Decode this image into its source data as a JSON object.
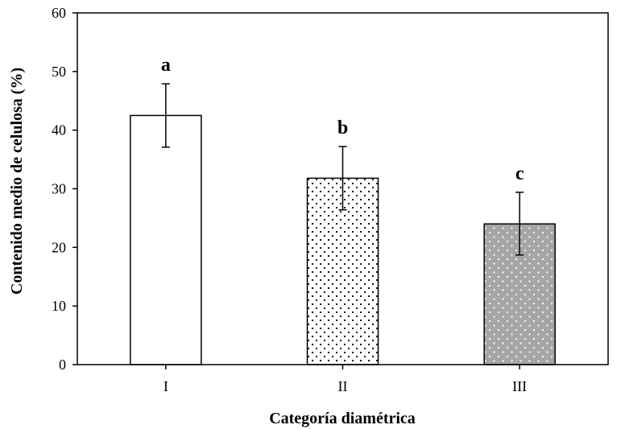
{
  "chart_data": {
    "type": "bar",
    "title": "",
    "xlabel": "Categoría diamétrica",
    "ylabel": "Contenido medio de celulosa (%)",
    "ylim": [
      0,
      60
    ],
    "yticks": [
      0,
      10,
      20,
      30,
      40,
      50,
      60
    ],
    "categories": [
      "I",
      "II",
      "III"
    ],
    "values": [
      42.5,
      31.8,
      24.0
    ],
    "error_low": [
      37.1,
      26.4,
      18.7
    ],
    "error_high": [
      47.9,
      37.2,
      29.4
    ],
    "significance_labels": [
      "a",
      "b",
      "c"
    ],
    "bar_styles": [
      "plain-white",
      "dotted-white",
      "dotted-gray"
    ],
    "grid": false,
    "legend": "none"
  },
  "colors": {
    "axis": "#000000",
    "bar_white": "#ffffff",
    "bar_gray": "#a6a6a6",
    "dots_on_white": "#000000",
    "dots_on_gray": "#ffffff"
  }
}
